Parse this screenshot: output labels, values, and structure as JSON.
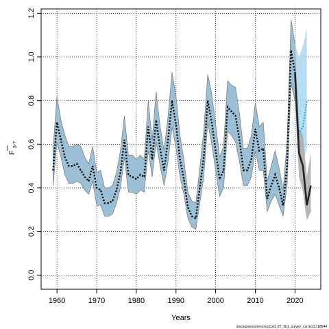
{
  "chart_data": {
    "type": "line",
    "xlabel": "Years",
    "ylabel": "F",
    "ylabel_subscript": "3-7",
    "xlim": [
      1956,
      2026.5
    ],
    "ylim": [
      -0.065,
      1.22
    ],
    "xticks": [
      1960,
      1970,
      1980,
      1990,
      2000,
      2010,
      2020
    ],
    "xtick_labels": [
      "1960",
      "1970",
      "1980",
      "1990",
      "2000",
      "2010",
      "2020"
    ],
    "yticks": [
      0.0,
      0.2,
      0.4,
      0.6,
      0.8,
      1.0,
      1.2
    ],
    "ytick_labels": [
      "0.0",
      "0.2",
      "0.4",
      "0.6",
      "0.8",
      "1.0",
      "1.2"
    ],
    "grid": true,
    "footnote": "stockassessment.org,Cod_27_5b1_survey_correct2,r18544",
    "colors": {
      "band_main": "#9bbfd4",
      "band_border": "#808080",
      "band_projection": "#a9d8f0",
      "band_retro": "#aaaaaa",
      "line_main": "#000000",
      "line_projection": "#3a9fd8",
      "line_retro": "#222222"
    },
    "series": [
      {
        "role": "estimate",
        "x": [
          1959,
          1960,
          1961,
          1962,
          1963,
          1964,
          1965,
          1966,
          1967,
          1968,
          1969,
          1970,
          1971,
          1972,
          1973,
          1974,
          1975,
          1976,
          1977,
          1978,
          1979,
          1980,
          1981,
          1982,
          1983,
          1984,
          1985,
          1986,
          1987,
          1988,
          1989,
          1990,
          1991,
          1992,
          1993,
          1994,
          1995,
          1996,
          1997,
          1998,
          1999,
          2000,
          2001,
          2002,
          2003,
          2004,
          2005,
          2006,
          2007,
          2008,
          2009,
          2010,
          2011,
          2012,
          2013,
          2014,
          2015,
          2016,
          2017,
          2018,
          2019,
          2020
        ],
        "y": [
          0.48,
          0.7,
          0.62,
          0.54,
          0.5,
          0.5,
          0.51,
          0.48,
          0.45,
          0.43,
          0.5,
          0.4,
          0.39,
          0.33,
          0.33,
          0.34,
          0.39,
          0.47,
          0.62,
          0.46,
          0.45,
          0.44,
          0.46,
          0.45,
          0.68,
          0.53,
          0.71,
          0.58,
          0.48,
          0.62,
          0.8,
          0.69,
          0.53,
          0.44,
          0.31,
          0.27,
          0.26,
          0.4,
          0.54,
          0.8,
          0.7,
          0.57,
          0.44,
          0.48,
          0.77,
          0.75,
          0.73,
          0.62,
          0.48,
          0.48,
          0.53,
          0.67,
          0.57,
          0.58,
          0.35,
          0.41,
          0.46,
          0.4,
          0.32,
          0.5,
          1.03,
          0.93
        ],
        "lower": [
          0.41,
          0.61,
          0.54,
          0.46,
          0.42,
          0.42,
          0.43,
          0.42,
          0.39,
          0.37,
          0.43,
          0.32,
          0.32,
          0.27,
          0.27,
          0.28,
          0.33,
          0.4,
          0.54,
          0.38,
          0.38,
          0.37,
          0.39,
          0.38,
          0.57,
          0.45,
          0.61,
          0.5,
          0.41,
          0.52,
          0.68,
          0.58,
          0.45,
          0.37,
          0.26,
          0.22,
          0.21,
          0.33,
          0.45,
          0.7,
          0.6,
          0.48,
          0.36,
          0.4,
          0.66,
          0.64,
          0.61,
          0.52,
          0.41,
          0.41,
          0.45,
          0.57,
          0.48,
          0.48,
          0.29,
          0.34,
          0.37,
          0.32,
          0.27,
          0.41,
          0.88,
          0.8
        ],
        "upper": [
          0.58,
          0.82,
          0.71,
          0.64,
          0.59,
          0.59,
          0.6,
          0.59,
          0.54,
          0.51,
          0.59,
          0.47,
          0.48,
          0.4,
          0.4,
          0.41,
          0.47,
          0.57,
          0.73,
          0.55,
          0.55,
          0.53,
          0.55,
          0.53,
          0.8,
          0.62,
          0.84,
          0.68,
          0.57,
          0.73,
          0.93,
          0.82,
          0.64,
          0.53,
          0.38,
          0.34,
          0.33,
          0.49,
          0.66,
          0.92,
          0.83,
          0.69,
          0.54,
          0.59,
          0.89,
          0.87,
          0.86,
          0.74,
          0.58,
          0.58,
          0.64,
          0.79,
          0.68,
          0.7,
          0.43,
          0.5,
          0.57,
          0.49,
          0.39,
          0.61,
          1.17,
          1.06
        ]
      },
      {
        "role": "projection",
        "x": [
          2020,
          2021,
          2022,
          2023
        ],
        "y": [
          0.93,
          0.65,
          0.68,
          0.8
        ],
        "lower": [
          0.8,
          0.5,
          0.52,
          0.58
        ],
        "upper": [
          1.06,
          1.0,
          1.05,
          1.13
        ]
      },
      {
        "role": "retro",
        "x": [
          2020,
          2021,
          2022,
          2023,
          2024
        ],
        "y": [
          0.93,
          0.56,
          0.5,
          0.32,
          0.41
        ],
        "lower": [
          0.8,
          0.45,
          0.38,
          0.25,
          0.29
        ],
        "upper": [
          1.06,
          0.67,
          0.64,
          0.45,
          0.56
        ]
      }
    ]
  }
}
